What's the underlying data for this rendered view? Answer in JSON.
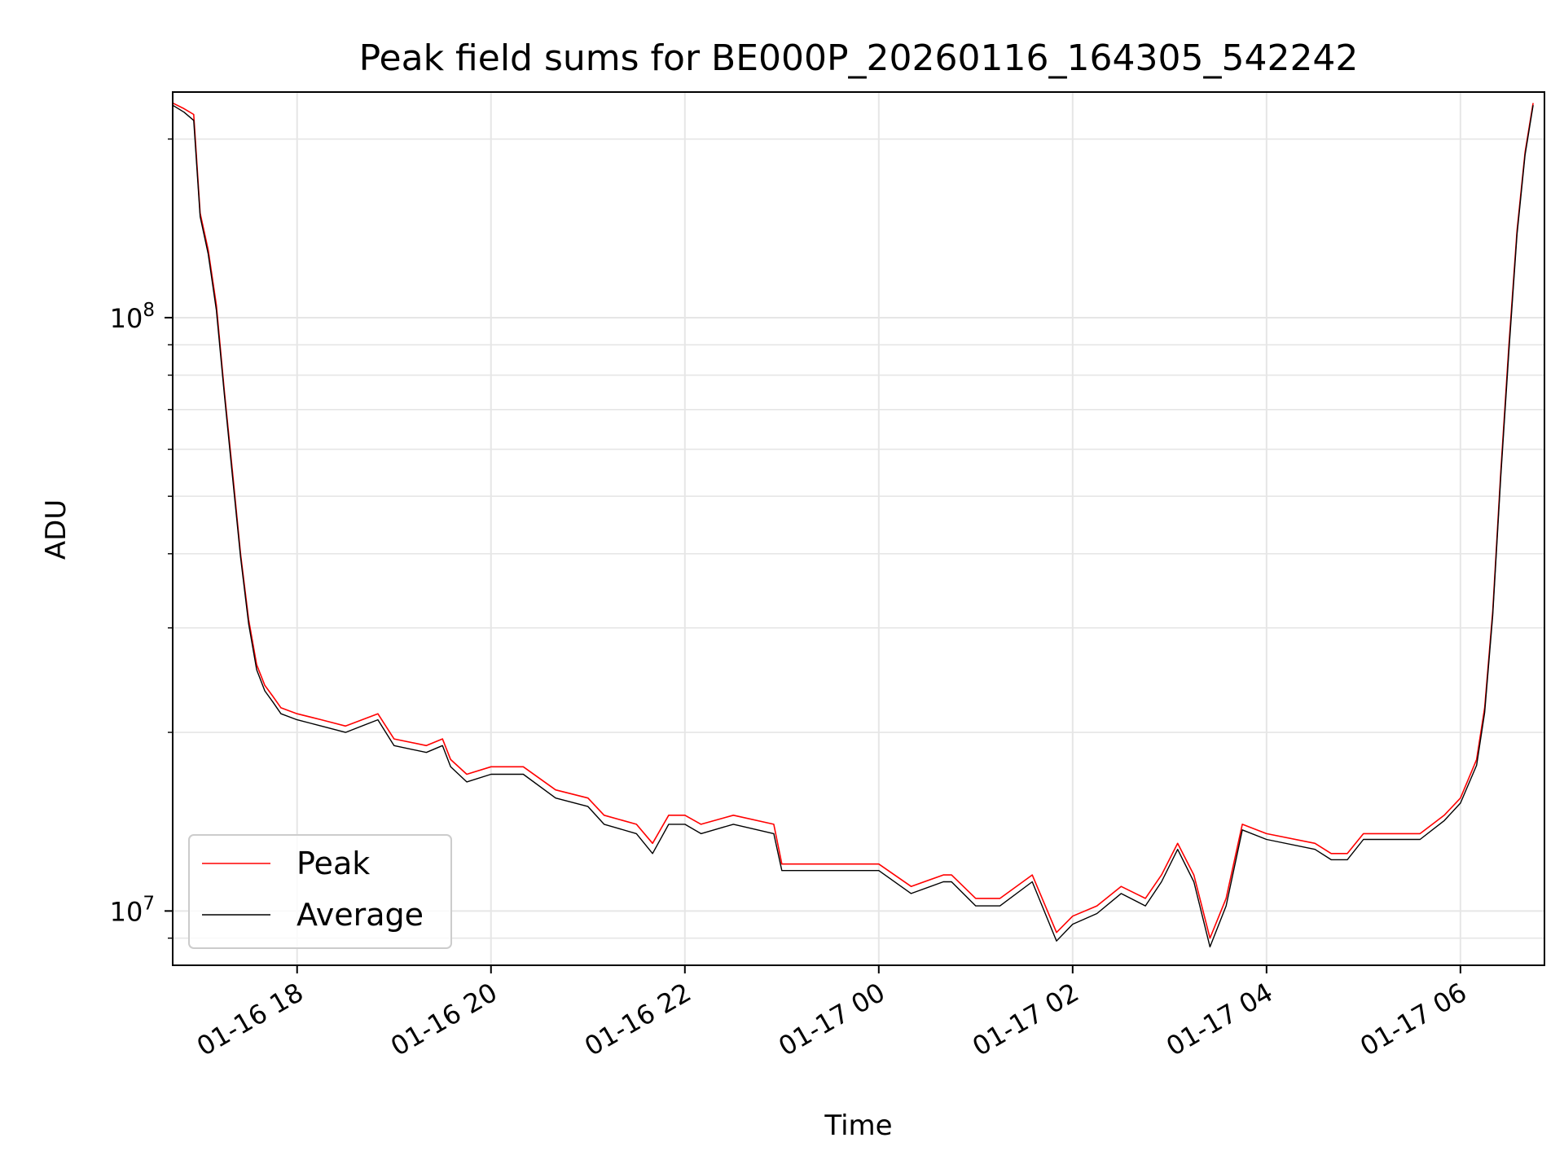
{
  "chart_data": {
    "type": "line",
    "title": "Peak field sums for BE000P_20260116_164305_542242",
    "xlabel": "Time",
    "ylabel": "ADU",
    "y_scale": "log",
    "y_tick_labels": [
      {
        "value": 10000000,
        "mantissa": "10",
        "exponent": "7"
      },
      {
        "value": 100000000,
        "mantissa": "10",
        "exponent": "8"
      }
    ],
    "ylim": [
      8100000,
      240000000
    ],
    "xlim": [
      "2026-01-16 16:43",
      "2026-01-17 06:52"
    ],
    "x_ticks": [
      {
        "value": "2026-01-16 18:00",
        "label": "01-16 18"
      },
      {
        "value": "2026-01-16 20:00",
        "label": "01-16 20"
      },
      {
        "value": "2026-01-16 22:00",
        "label": "01-16 22"
      },
      {
        "value": "2026-01-17 00:00",
        "label": "01-17 00"
      },
      {
        "value": "2026-01-17 02:00",
        "label": "01-17 02"
      },
      {
        "value": "2026-01-17 04:00",
        "label": "01-17 04"
      },
      {
        "value": "2026-01-17 06:00",
        "label": "01-17 06"
      }
    ],
    "grid": true,
    "legend_position": "lower-left",
    "series": [
      {
        "name": "Peak",
        "color": "#ff0000",
        "x": [
          "2026-01-16 16:43",
          "2026-01-16 16:50",
          "2026-01-16 16:56",
          "2026-01-16 17:00",
          "2026-01-16 17:05",
          "2026-01-16 17:10",
          "2026-01-16 17:15",
          "2026-01-16 17:20",
          "2026-01-16 17:25",
          "2026-01-16 17:30",
          "2026-01-16 17:35",
          "2026-01-16 17:40",
          "2026-01-16 17:45",
          "2026-01-16 17:50",
          "2026-01-16 18:00",
          "2026-01-16 18:15",
          "2026-01-16 18:30",
          "2026-01-16 18:50",
          "2026-01-16 19:00",
          "2026-01-16 19:20",
          "2026-01-16 19:30",
          "2026-01-16 19:35",
          "2026-01-16 19:45",
          "2026-01-16 20:00",
          "2026-01-16 20:20",
          "2026-01-16 20:40",
          "2026-01-16 21:00",
          "2026-01-16 21:10",
          "2026-01-16 21:30",
          "2026-01-16 21:40",
          "2026-01-16 21:50",
          "2026-01-16 22:00",
          "2026-01-16 22:10",
          "2026-01-16 22:30",
          "2026-01-16 22:55",
          "2026-01-16 23:00",
          "2026-01-16 23:30",
          "2026-01-16 23:45",
          "2026-01-17 00:00",
          "2026-01-17 00:20",
          "2026-01-17 00:40",
          "2026-01-17 00:45",
          "2026-01-17 01:00",
          "2026-01-17 01:15",
          "2026-01-17 01:35",
          "2026-01-17 01:50",
          "2026-01-17 02:00",
          "2026-01-17 02:15",
          "2026-01-17 02:30",
          "2026-01-17 02:45",
          "2026-01-17 02:55",
          "2026-01-17 03:05",
          "2026-01-17 03:15",
          "2026-01-17 03:25",
          "2026-01-17 03:35",
          "2026-01-17 03:45",
          "2026-01-17 04:00",
          "2026-01-17 04:30",
          "2026-01-17 04:40",
          "2026-01-17 04:50",
          "2026-01-17 05:00",
          "2026-01-17 05:20",
          "2026-01-17 05:35",
          "2026-01-17 05:50",
          "2026-01-17 06:00",
          "2026-01-17 06:10",
          "2026-01-17 06:15",
          "2026-01-17 06:20",
          "2026-01-17 06:25",
          "2026-01-17 06:30",
          "2026-01-17 06:35",
          "2026-01-17 06:40",
          "2026-01-17 06:45"
        ],
        "y": [
          230000000,
          225000000,
          220000000,
          150000000,
          130000000,
          105000000,
          75000000,
          55000000,
          40000000,
          31000000,
          26000000,
          24000000,
          23000000,
          22000000,
          21500000,
          21000000,
          20500000,
          21500000,
          19500000,
          19000000,
          19500000,
          18000000,
          17000000,
          17500000,
          17500000,
          16000000,
          15500000,
          14500000,
          14000000,
          13000000,
          14500000,
          14500000,
          14000000,
          14500000,
          14000000,
          12000000,
          12000000,
          12000000,
          12000000,
          11000000,
          11500000,
          11500000,
          10500000,
          10500000,
          11500000,
          9200000,
          9800000,
          10200000,
          11000000,
          10500000,
          11500000,
          13000000,
          11500000,
          9000000,
          10500000,
          14000000,
          13500000,
          13000000,
          12500000,
          12500000,
          13500000,
          13500000,
          13500000,
          14500000,
          15500000,
          18000000,
          22000000,
          32000000,
          55000000,
          90000000,
          140000000,
          190000000,
          230000000
        ]
      },
      {
        "name": "Average",
        "color": "#000000",
        "x": [
          "2026-01-16 16:43",
          "2026-01-16 16:50",
          "2026-01-16 16:56",
          "2026-01-16 17:00",
          "2026-01-16 17:05",
          "2026-01-16 17:10",
          "2026-01-16 17:15",
          "2026-01-16 17:20",
          "2026-01-16 17:25",
          "2026-01-16 17:30",
          "2026-01-16 17:35",
          "2026-01-16 17:40",
          "2026-01-16 17:45",
          "2026-01-16 17:50",
          "2026-01-16 18:00",
          "2026-01-16 18:15",
          "2026-01-16 18:30",
          "2026-01-16 18:50",
          "2026-01-16 19:00",
          "2026-01-16 19:20",
          "2026-01-16 19:30",
          "2026-01-16 19:35",
          "2026-01-16 19:45",
          "2026-01-16 20:00",
          "2026-01-16 20:20",
          "2026-01-16 20:40",
          "2026-01-16 21:00",
          "2026-01-16 21:10",
          "2026-01-16 21:30",
          "2026-01-16 21:40",
          "2026-01-16 21:50",
          "2026-01-16 22:00",
          "2026-01-16 22:10",
          "2026-01-16 22:30",
          "2026-01-16 22:55",
          "2026-01-16 23:00",
          "2026-01-16 23:30",
          "2026-01-16 23:45",
          "2026-01-17 00:00",
          "2026-01-17 00:20",
          "2026-01-17 00:40",
          "2026-01-17 00:45",
          "2026-01-17 01:00",
          "2026-01-17 01:15",
          "2026-01-17 01:35",
          "2026-01-17 01:50",
          "2026-01-17 02:00",
          "2026-01-17 02:15",
          "2026-01-17 02:30",
          "2026-01-17 02:45",
          "2026-01-17 02:55",
          "2026-01-17 03:05",
          "2026-01-17 03:15",
          "2026-01-17 03:25",
          "2026-01-17 03:35",
          "2026-01-17 03:45",
          "2026-01-17 04:00",
          "2026-01-17 04:30",
          "2026-01-17 04:40",
          "2026-01-17 04:50",
          "2026-01-17 05:00",
          "2026-01-17 05:20",
          "2026-01-17 05:35",
          "2026-01-17 05:50",
          "2026-01-17 06:00",
          "2026-01-17 06:10",
          "2026-01-17 06:15",
          "2026-01-17 06:20",
          "2026-01-17 06:25",
          "2026-01-17 06:30",
          "2026-01-17 06:35",
          "2026-01-17 06:40",
          "2026-01-17 06:45"
        ],
        "y": [
          228000000,
          222000000,
          215000000,
          148000000,
          128000000,
          103000000,
          74000000,
          54000000,
          39500000,
          30500000,
          25500000,
          23500000,
          22500000,
          21500000,
          21000000,
          20500000,
          20000000,
          21000000,
          19000000,
          18500000,
          19000000,
          17500000,
          16500000,
          17000000,
          17000000,
          15500000,
          15000000,
          14000000,
          13500000,
          12500000,
          14000000,
          14000000,
          13500000,
          14000000,
          13500000,
          11700000,
          11700000,
          11700000,
          11700000,
          10700000,
          11200000,
          11200000,
          10200000,
          10200000,
          11200000,
          8900000,
          9500000,
          9900000,
          10700000,
          10200000,
          11200000,
          12700000,
          11200000,
          8700000,
          10200000,
          13700000,
          13200000,
          12700000,
          12200000,
          12200000,
          13200000,
          13200000,
          13200000,
          14200000,
          15200000,
          17600000,
          21600000,
          31500000,
          54000000,
          88000000,
          138000000,
          188000000,
          228000000
        ]
      }
    ]
  }
}
